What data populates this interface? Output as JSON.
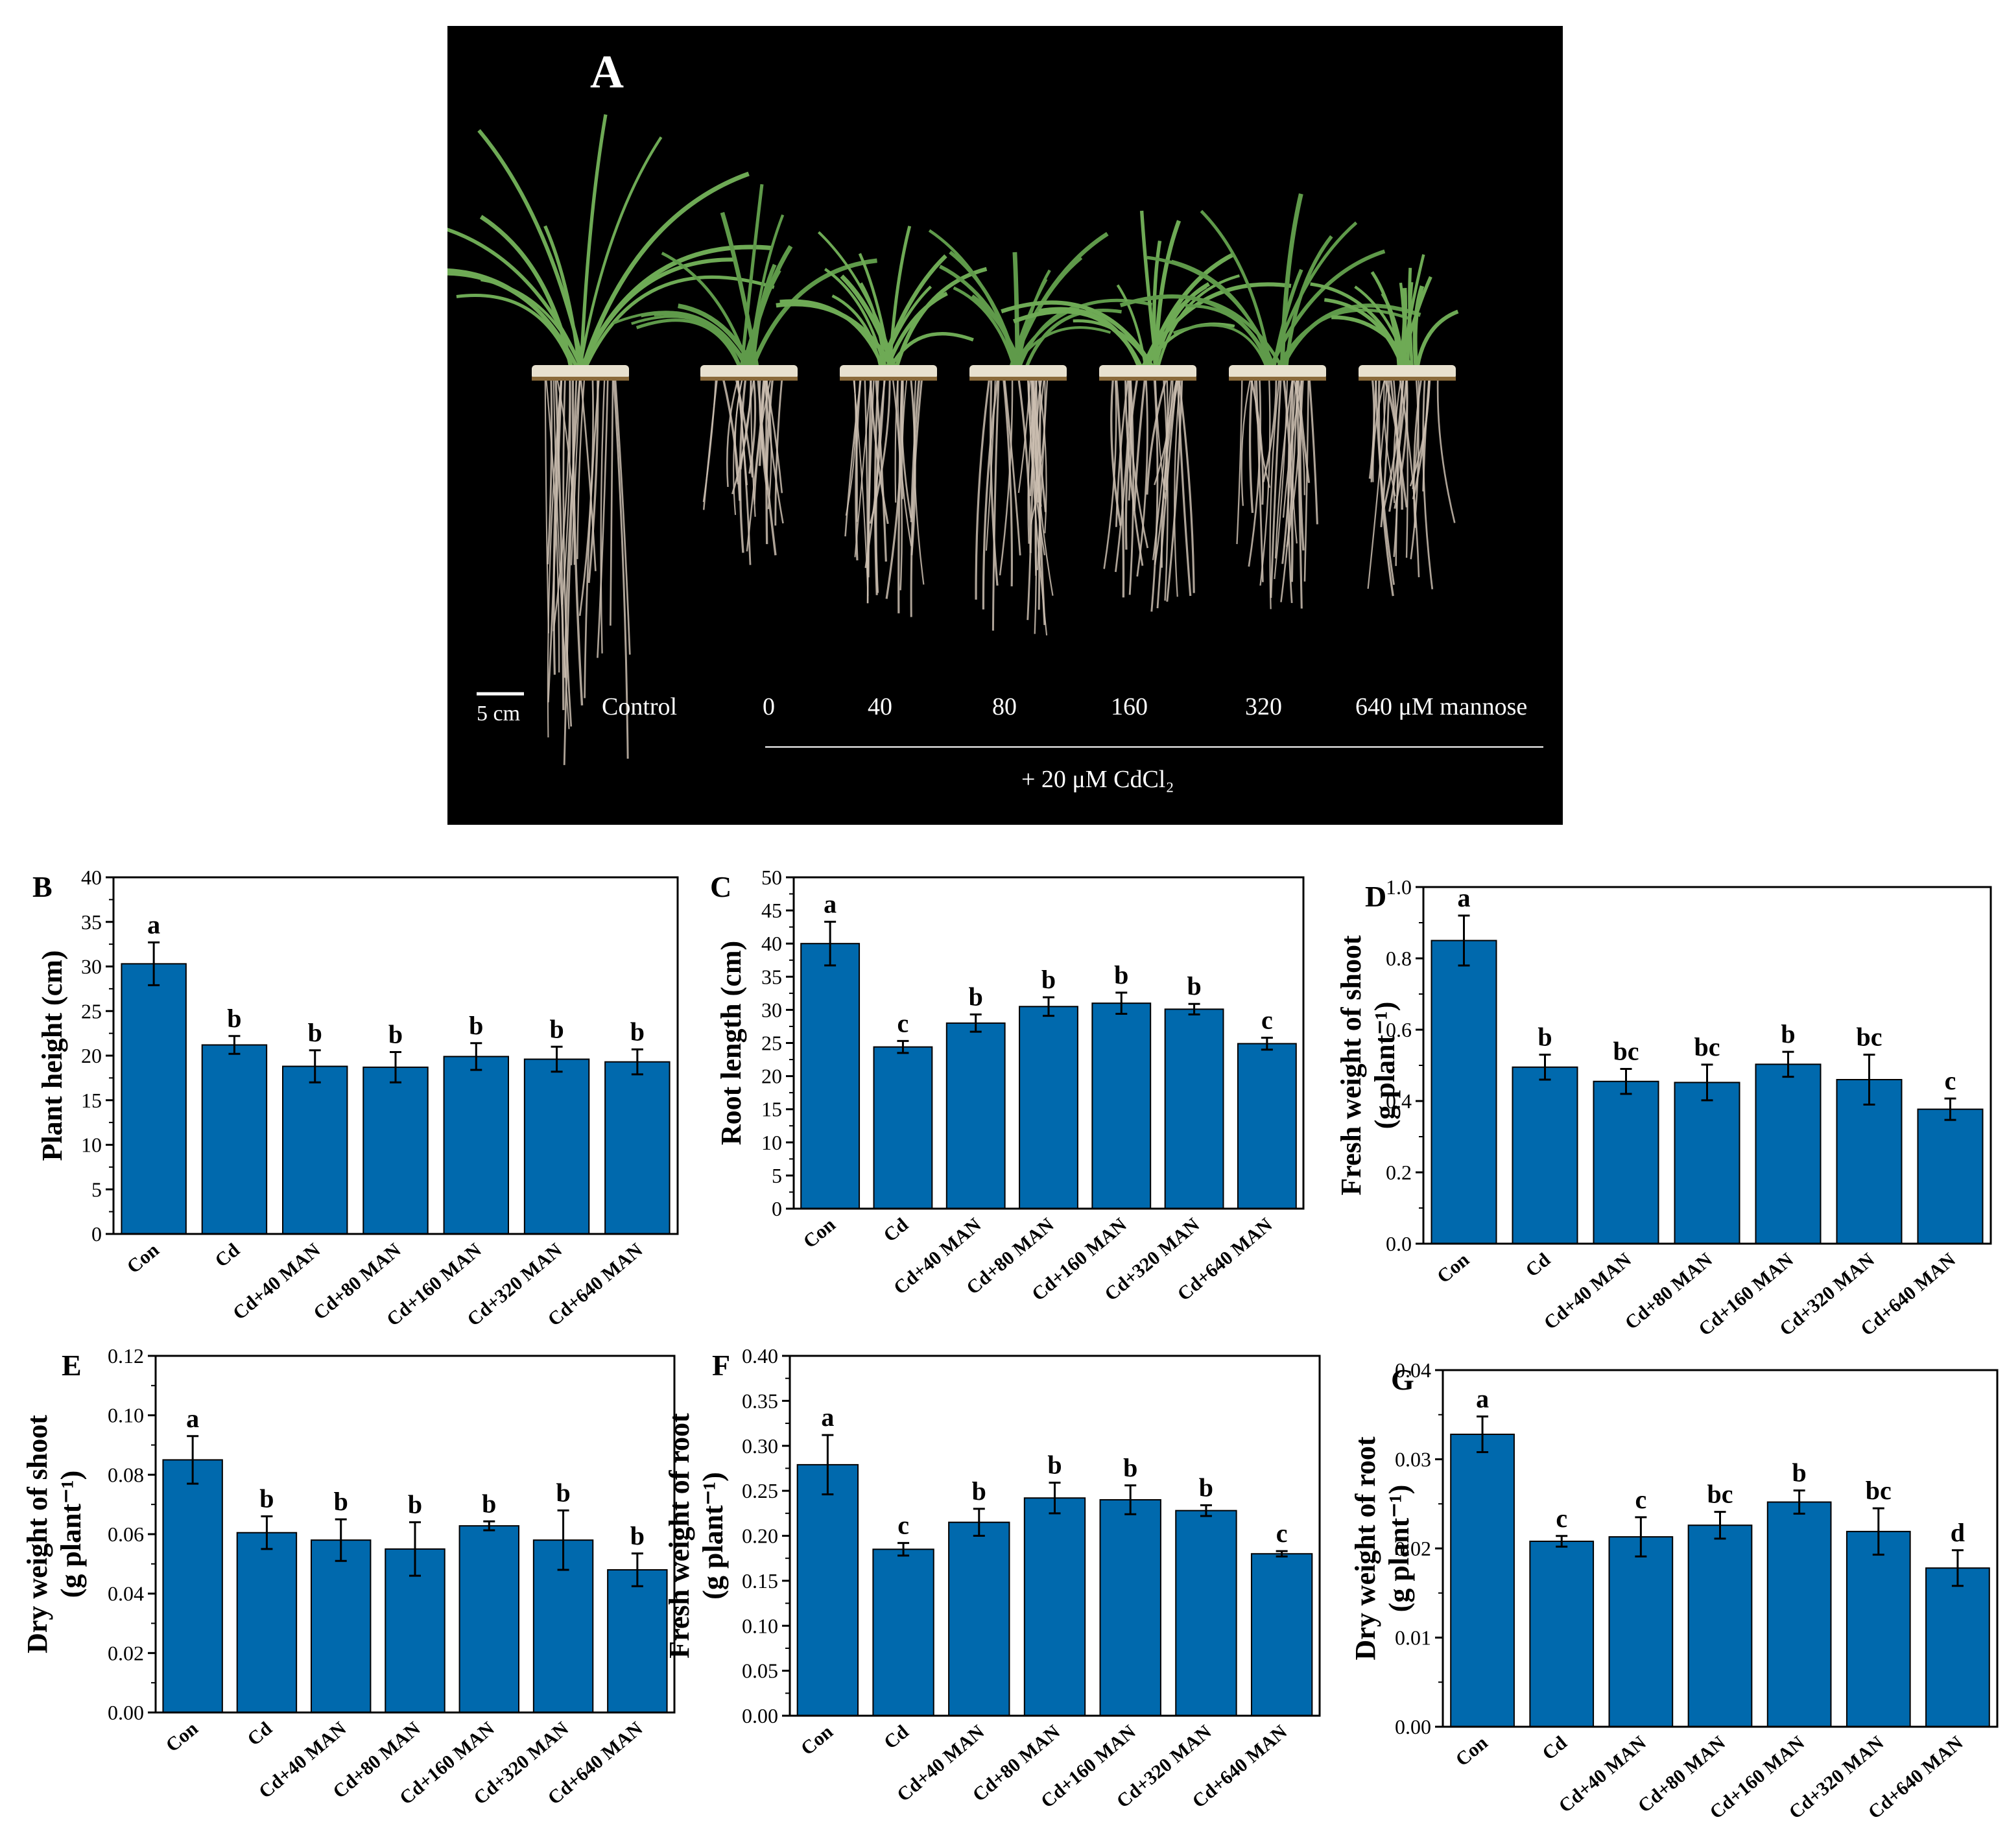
{
  "photo": {
    "panel_letter": "A",
    "scale_bar": "5 cm",
    "treatment_labels": [
      "Control",
      "0",
      "40",
      "80",
      "160",
      "320",
      "640 μM mannose"
    ],
    "cadmium_label": "+ 20 μM CdCl₂"
  },
  "colors": {
    "bar": "#0069AD",
    "axis": "#000000"
  },
  "chart_data": [
    {
      "panel": "B",
      "type": "bar",
      "categories": [
        "Con",
        "Cd",
        "Cd+40 MAN",
        "Cd+80 MAN",
        "Cd+160 MAN",
        "Cd+320 MAN",
        "Cd+640 MAN"
      ],
      "values": [
        30.3,
        21.2,
        18.8,
        18.7,
        19.9,
        19.6,
        19.3
      ],
      "errors": [
        2.4,
        1.0,
        1.8,
        1.7,
        1.5,
        1.4,
        1.4
      ],
      "letters": [
        "a",
        "b",
        "b",
        "b",
        "b",
        "b",
        "b"
      ],
      "ylabel_lines": [
        "Plant height (cm)"
      ],
      "ylim": [
        0,
        40
      ],
      "yticks": [
        0,
        5,
        10,
        15,
        20,
        25,
        30,
        35,
        40
      ],
      "tick_labels": [
        "0",
        "5",
        "10",
        "15",
        "20",
        "25",
        "30",
        "35",
        "40"
      ]
    },
    {
      "panel": "C",
      "type": "bar",
      "categories": [
        "Con",
        "Cd",
        "Cd+40 MAN",
        "Cd+80 MAN",
        "Cd+160 MAN",
        "Cd+320 MAN",
        "Cd+640 MAN"
      ],
      "values": [
        40.0,
        24.4,
        28.0,
        30.5,
        31.0,
        30.1,
        24.9
      ],
      "errors": [
        3.3,
        0.9,
        1.3,
        1.4,
        1.6,
        0.8,
        0.9
      ],
      "letters": [
        "a",
        "c",
        "b",
        "b",
        "b",
        "b",
        "c"
      ],
      "ylabel_lines": [
        "Root length (cm)"
      ],
      "ylim": [
        0,
        50
      ],
      "yticks": [
        0,
        5,
        10,
        15,
        20,
        25,
        30,
        35,
        40,
        45,
        50
      ],
      "tick_labels": [
        "0",
        "5",
        "10",
        "15",
        "20",
        "25",
        "30",
        "35",
        "40",
        "45",
        "50"
      ]
    },
    {
      "panel": "D",
      "type": "bar",
      "categories": [
        "Con",
        "Cd",
        "Cd+40 MAN",
        "Cd+80 MAN",
        "Cd+160 MAN",
        "Cd+320 MAN",
        "Cd+640 MAN"
      ],
      "values": [
        0.85,
        0.495,
        0.455,
        0.452,
        0.503,
        0.46,
        0.377
      ],
      "errors": [
        0.07,
        0.035,
        0.035,
        0.05,
        0.035,
        0.07,
        0.03
      ],
      "letters": [
        "a",
        "b",
        "bc",
        "bc",
        "b",
        "bc",
        "c"
      ],
      "ylabel_lines": [
        "Fresh weight of shoot",
        "(g plant⁻¹)"
      ],
      "ylim": [
        0,
        1.0
      ],
      "yticks": [
        0,
        0.2,
        0.4,
        0.6,
        0.8,
        1.0
      ],
      "tick_labels": [
        "0.0",
        "0.2",
        "0.4",
        "0.6",
        "0.8",
        "1.0"
      ]
    },
    {
      "panel": "E",
      "type": "bar",
      "categories": [
        "Con",
        "Cd",
        "Cd+40 MAN",
        "Cd+80 MAN",
        "Cd+160 MAN",
        "Cd+320 MAN",
        "Cd+640 MAN"
      ],
      "values": [
        0.085,
        0.0605,
        0.058,
        0.055,
        0.0628,
        0.058,
        0.048
      ],
      "errors": [
        0.008,
        0.0055,
        0.007,
        0.009,
        0.0015,
        0.01,
        0.0055
      ],
      "letters": [
        "a",
        "b",
        "b",
        "b",
        "b",
        "b",
        "b"
      ],
      "ylabel_lines": [
        "Dry weight of shoot",
        "(g plant⁻¹)"
      ],
      "ylim": [
        0,
        0.12
      ],
      "yticks": [
        0,
        0.02,
        0.04,
        0.06,
        0.08,
        0.1,
        0.12
      ],
      "tick_labels": [
        "0.00",
        "0.02",
        "0.04",
        "0.06",
        "0.08",
        "0.10",
        "0.12"
      ]
    },
    {
      "panel": "F",
      "type": "bar",
      "categories": [
        "Con",
        "Cd",
        "Cd+40 MAN",
        "Cd+80 MAN",
        "Cd+160 MAN",
        "Cd+320 MAN",
        "Cd+640 MAN"
      ],
      "values": [
        0.279,
        0.185,
        0.215,
        0.242,
        0.24,
        0.228,
        0.18
      ],
      "errors": [
        0.033,
        0.007,
        0.015,
        0.017,
        0.016,
        0.006,
        0.003
      ],
      "letters": [
        "a",
        "c",
        "b",
        "b",
        "b",
        "b",
        "c"
      ],
      "ylabel_lines": [
        "Fresh weight of root",
        "(g plant⁻¹)"
      ],
      "ylim": [
        0,
        0.4
      ],
      "yticks": [
        0,
        0.05,
        0.1,
        0.15,
        0.2,
        0.25,
        0.3,
        0.35,
        0.4
      ],
      "tick_labels": [
        "0.00",
        "0.05",
        "0.10",
        "0.15",
        "0.20",
        "0.25",
        "0.30",
        "0.35",
        "0.40"
      ]
    },
    {
      "panel": "G",
      "type": "bar",
      "categories": [
        "Con",
        "Cd",
        "Cd+40 MAN",
        "Cd+80 MAN",
        "Cd+160 MAN",
        "Cd+320 MAN",
        "Cd+640 MAN"
      ],
      "values": [
        0.0328,
        0.0208,
        0.0213,
        0.0226,
        0.0252,
        0.0219,
        0.0178
      ],
      "errors": [
        0.002,
        0.0006,
        0.0022,
        0.0015,
        0.0013,
        0.0026,
        0.002
      ],
      "letters": [
        "a",
        "c",
        "c",
        "bc",
        "b",
        "bc",
        "d"
      ],
      "ylabel_lines": [
        "Dry weight of root",
        "(g plant⁻¹)"
      ],
      "ylim": [
        0,
        0.04
      ],
      "yticks": [
        0,
        0.01,
        0.02,
        0.03,
        0.04
      ],
      "tick_labels": [
        "0.00",
        "0.01",
        "0.02",
        "0.03",
        "0.04"
      ]
    }
  ]
}
